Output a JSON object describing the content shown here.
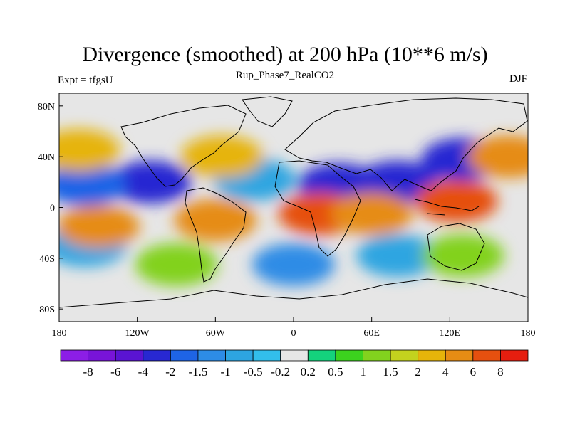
{
  "chart_data": {
    "type": "heatmap",
    "title": "Divergence (smoothed) at 200 hPa (10**6 m/s)",
    "left_label": "Expt = tfgsU",
    "center_label": "Rup_Phase7_RealCO2",
    "right_label": "DJF",
    "x_ticks": [
      "180",
      "120W",
      "60W",
      "0",
      "60E",
      "120E",
      "180"
    ],
    "x_tick_values": [
      -180,
      -120,
      -60,
      0,
      60,
      120,
      180
    ],
    "y_ticks": [
      "80N",
      "40N",
      "0",
      "40S",
      "80S"
    ],
    "y_tick_values": [
      80,
      40,
      0,
      -40,
      -80
    ],
    "xlim": [
      -180,
      180
    ],
    "ylim": [
      -90,
      90
    ],
    "colorbar": {
      "levels": [
        "-8",
        "-6",
        "-4",
        "-2",
        "-1.5",
        "-1",
        "-0.5",
        "-0.2",
        "0.2",
        "0.5",
        "1",
        "1.5",
        "2",
        "4",
        "6",
        "8"
      ],
      "colors": [
        "#8c1ee6",
        "#7814d8",
        "#5a14d2",
        "#2828d2",
        "#1e64e6",
        "#2d8ce6",
        "#2da5e1",
        "#32beeb",
        "#e6e6e6",
        "#14d27d",
        "#3cd21e",
        "#82d21e",
        "#c3d21e",
        "#e6b40a",
        "#e68c14",
        "#e6500f",
        "#e61e0f"
      ],
      "orientation": "horizontal"
    },
    "regions": [
      {
        "lon": -110,
        "lat": 20,
        "value": -4
      },
      {
        "lon": -160,
        "lat": 18,
        "value": -2
      },
      {
        "lon": 35,
        "lat": 18,
        "value": -4
      },
      {
        "lon": 80,
        "lat": 20,
        "value": -4
      },
      {
        "lon": 130,
        "lat": 38,
        "value": -4
      },
      {
        "lon": -30,
        "lat": 22,
        "value": -1
      },
      {
        "lon": -160,
        "lat": -30,
        "value": -1
      },
      {
        "lon": 80,
        "lat": -38,
        "value": -1
      },
      {
        "lon": 0,
        "lat": -45,
        "value": -1.5
      },
      {
        "lon": -165,
        "lat": 45,
        "value": 2
      },
      {
        "lon": -55,
        "lat": 40,
        "value": 2
      },
      {
        "lon": 165,
        "lat": 40,
        "value": 4
      },
      {
        "lon": -60,
        "lat": -10,
        "value": 4
      },
      {
        "lon": 20,
        "lat": -5,
        "value": 6
      },
      {
        "lon": 60,
        "lat": -5,
        "value": 4
      },
      {
        "lon": 125,
        "lat": 5,
        "value": 6
      },
      {
        "lon": -150,
        "lat": -15,
        "value": 4
      },
      {
        "lon": 130,
        "lat": -38,
        "value": 1
      },
      {
        "lon": -90,
        "lat": -45,
        "value": 1
      }
    ]
  }
}
